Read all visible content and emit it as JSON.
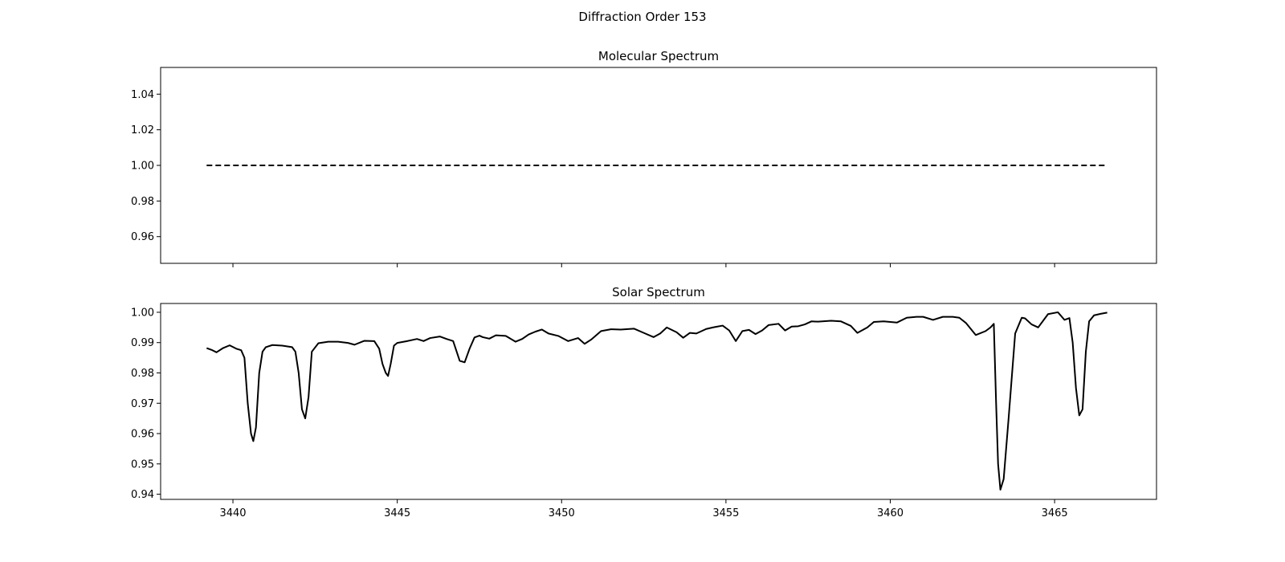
{
  "figure": {
    "suptitle": "Diffraction Order 153"
  },
  "chart_data": [
    {
      "type": "line",
      "title": "Molecular Spectrum",
      "xlabel": "",
      "ylabel": "",
      "xlim": [
        3437.8,
        3468.1
      ],
      "ylim": [
        0.945,
        1.055
      ],
      "yticks": [
        0.96,
        0.98,
        1.0,
        1.02,
        1.04
      ],
      "ytick_labels": [
        "0.96",
        "0.98",
        "1.00",
        "1.02",
        "1.04"
      ],
      "xticks": [
        3440,
        3445,
        3450,
        3455,
        3460,
        3465
      ],
      "xtick_labels_shown": false,
      "grid": false,
      "series": [
        {
          "line_style": "dashed",
          "color": "#000000",
          "x": [
            3439.2,
            3466.6
          ],
          "y": [
            1.0,
            1.0
          ]
        }
      ]
    },
    {
      "type": "line",
      "title": "Solar Spectrum",
      "xlabel": "",
      "ylabel": "",
      "xlim": [
        3437.8,
        3468.1
      ],
      "ylim": [
        0.9383,
        1.0029
      ],
      "xticks": [
        3440,
        3445,
        3450,
        3455,
        3460,
        3465
      ],
      "xtick_labels": [
        "3440",
        "3445",
        "3450",
        "3455",
        "3460",
        "3465"
      ],
      "yticks": [
        0.94,
        0.95,
        0.96,
        0.97,
        0.98,
        0.99,
        1.0
      ],
      "ytick_labels": [
        "0.94",
        "0.95",
        "0.96",
        "0.97",
        "0.98",
        "0.99",
        "1.00"
      ],
      "grid": false,
      "series": [
        {
          "line_style": "solid",
          "color": "#000000",
          "x": [
            3439.2,
            3439.35,
            3439.5,
            3439.7,
            3439.9,
            3440.1,
            3440.25,
            3440.35,
            3440.45,
            3440.55,
            3440.62,
            3440.7,
            3440.8,
            3440.9,
            3441.0,
            3441.2,
            3441.5,
            3441.8,
            3441.9,
            3442.0,
            3442.1,
            3442.2,
            3442.3,
            3442.4,
            3442.6,
            3442.9,
            3443.2,
            3443.5,
            3443.7,
            3444.0,
            3444.3,
            3444.45,
            3444.55,
            3444.65,
            3444.72,
            3444.8,
            3444.9,
            3445.0,
            3445.3,
            3445.6,
            3445.8,
            3446.0,
            3446.3,
            3446.5,
            3446.7,
            3446.9,
            3447.05,
            3447.2,
            3447.35,
            3447.5,
            3447.6,
            3447.8,
            3448.0,
            3448.3,
            3448.6,
            3448.8,
            3449.0,
            3449.2,
            3449.4,
            3449.6,
            3449.9,
            3450.2,
            3450.5,
            3450.7,
            3450.9,
            3451.2,
            3451.5,
            3451.8,
            3452.2,
            3452.5,
            3452.8,
            3453.0,
            3453.2,
            3453.5,
            3453.7,
            3453.9,
            3454.1,
            3454.4,
            3454.6,
            3454.9,
            3455.1,
            3455.3,
            3455.5,
            3455.7,
            3455.9,
            3456.1,
            3456.3,
            3456.6,
            3456.8,
            3457.0,
            3457.2,
            3457.4,
            3457.6,
            3457.8,
            3458.2,
            3458.5,
            3458.8,
            3459.0,
            3459.3,
            3459.5,
            3459.8,
            3460.2,
            3460.5,
            3460.8,
            3461.0,
            3461.3,
            3461.6,
            3461.9,
            3462.1,
            3462.3,
            3462.6,
            3462.9,
            3463.05,
            3463.15,
            3463.22,
            3463.28,
            3463.35,
            3463.45,
            3463.6,
            3463.8,
            3464.0,
            3464.1,
            3464.3,
            3464.5,
            3464.8,
            3465.1,
            3465.3,
            3465.45,
            3465.55,
            3465.65,
            3465.75,
            3465.85,
            3465.95,
            3466.05,
            3466.2,
            3466.4,
            3466.6
          ],
          "y": [
            0.9882,
            0.9876,
            0.9868,
            0.9882,
            0.9891,
            0.988,
            0.9875,
            0.985,
            0.97,
            0.96,
            0.9575,
            0.962,
            0.98,
            0.987,
            0.9885,
            0.9892,
            0.989,
            0.9885,
            0.987,
            0.98,
            0.968,
            0.965,
            0.972,
            0.987,
            0.9898,
            0.9903,
            0.9903,
            0.9899,
            0.9893,
            0.9906,
            0.9905,
            0.988,
            0.983,
            0.98,
            0.979,
            0.983,
            0.989,
            0.9899,
            0.9905,
            0.9912,
            0.9905,
            0.9915,
            0.992,
            0.9912,
            0.9905,
            0.984,
            0.9835,
            0.988,
            0.9917,
            0.9923,
            0.9918,
            0.9913,
            0.9924,
            0.9922,
            0.9903,
            0.9912,
            0.9927,
            0.9936,
            0.9943,
            0.993,
            0.9922,
            0.9905,
            0.9915,
            0.9896,
            0.991,
            0.9938,
            0.9944,
            0.9943,
            0.9946,
            0.9932,
            0.9918,
            0.993,
            0.995,
            0.9934,
            0.9916,
            0.9932,
            0.993,
            0.9945,
            0.995,
            0.9956,
            0.994,
            0.9905,
            0.9938,
            0.9942,
            0.9928,
            0.994,
            0.9958,
            0.9962,
            0.994,
            0.9953,
            0.9954,
            0.996,
            0.997,
            0.9969,
            0.9972,
            0.997,
            0.9955,
            0.9932,
            0.995,
            0.9968,
            0.997,
            0.9966,
            0.9982,
            0.9985,
            0.9985,
            0.9975,
            0.9985,
            0.9985,
            0.9982,
            0.9965,
            0.9925,
            0.9938,
            0.995,
            0.9962,
            0.97,
            0.95,
            0.9415,
            0.945,
            0.965,
            0.993,
            0.9982,
            0.998,
            0.996,
            0.995,
            0.9994,
            1.0,
            0.9975,
            0.9981,
            0.99,
            0.975,
            0.966,
            0.968,
            0.987,
            0.997,
            0.999,
            0.9995,
            0.9999
          ]
        }
      ]
    }
  ]
}
